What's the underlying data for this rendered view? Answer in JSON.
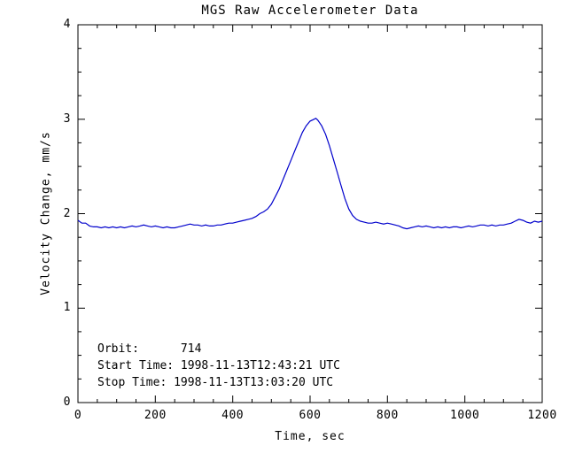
{
  "chart_data": {
    "type": "line",
    "title": "MGS Raw Accelerometer Data",
    "xlabel": "Time, sec",
    "ylabel": "Velocity Change, mm/s",
    "xlim": [
      0,
      1200
    ],
    "ylim": [
      0,
      4
    ],
    "xticks": [
      0,
      200,
      400,
      600,
      800,
      1000,
      1200
    ],
    "yticks": [
      0,
      1,
      2,
      3,
      4
    ],
    "x_minor_step": 50,
    "y_minor_step": 0.25,
    "grid": false,
    "legend": "none",
    "line_color": "#0000cc",
    "axis_color": "#000000",
    "background_color": "#ffffff",
    "annotations": [
      "Orbit:      714",
      "Start Time: 1998-11-13T12:43:21 UTC",
      "Stop Time: 1998-11-13T13:03:20 UTC"
    ],
    "points": [
      [
        0,
        1.93
      ],
      [
        10,
        1.9
      ],
      [
        20,
        1.9
      ],
      [
        30,
        1.87
      ],
      [
        40,
        1.86
      ],
      [
        50,
        1.86
      ],
      [
        60,
        1.85
      ],
      [
        70,
        1.86
      ],
      [
        80,
        1.85
      ],
      [
        90,
        1.86
      ],
      [
        100,
        1.85
      ],
      [
        110,
        1.86
      ],
      [
        120,
        1.85
      ],
      [
        130,
        1.86
      ],
      [
        140,
        1.87
      ],
      [
        150,
        1.86
      ],
      [
        160,
        1.87
      ],
      [
        170,
        1.88
      ],
      [
        180,
        1.87
      ],
      [
        190,
        1.86
      ],
      [
        200,
        1.87
      ],
      [
        210,
        1.86
      ],
      [
        220,
        1.85
      ],
      [
        230,
        1.86
      ],
      [
        240,
        1.85
      ],
      [
        250,
        1.85
      ],
      [
        260,
        1.86
      ],
      [
        270,
        1.87
      ],
      [
        280,
        1.88
      ],
      [
        290,
        1.89
      ],
      [
        300,
        1.88
      ],
      [
        310,
        1.88
      ],
      [
        320,
        1.87
      ],
      [
        330,
        1.88
      ],
      [
        340,
        1.87
      ],
      [
        350,
        1.87
      ],
      [
        360,
        1.88
      ],
      [
        370,
        1.88
      ],
      [
        380,
        1.89
      ],
      [
        390,
        1.9
      ],
      [
        400,
        1.9
      ],
      [
        410,
        1.91
      ],
      [
        420,
        1.92
      ],
      [
        430,
        1.93
      ],
      [
        440,
        1.94
      ],
      [
        450,
        1.95
      ],
      [
        460,
        1.97
      ],
      [
        470,
        2.0
      ],
      [
        480,
        2.02
      ],
      [
        490,
        2.05
      ],
      [
        500,
        2.1
      ],
      [
        510,
        2.18
      ],
      [
        520,
        2.26
      ],
      [
        530,
        2.36
      ],
      [
        540,
        2.46
      ],
      [
        550,
        2.56
      ],
      [
        560,
        2.66
      ],
      [
        570,
        2.76
      ],
      [
        580,
        2.86
      ],
      [
        590,
        2.93
      ],
      [
        600,
        2.98
      ],
      [
        610,
        3.0
      ],
      [
        615,
        3.01
      ],
      [
        620,
        2.99
      ],
      [
        630,
        2.93
      ],
      [
        640,
        2.84
      ],
      [
        650,
        2.72
      ],
      [
        660,
        2.58
      ],
      [
        670,
        2.44
      ],
      [
        680,
        2.3
      ],
      [
        690,
        2.16
      ],
      [
        700,
        2.05
      ],
      [
        710,
        1.98
      ],
      [
        720,
        1.94
      ],
      [
        730,
        1.92
      ],
      [
        740,
        1.91
      ],
      [
        750,
        1.9
      ],
      [
        760,
        1.9
      ],
      [
        770,
        1.91
      ],
      [
        780,
        1.9
      ],
      [
        790,
        1.89
      ],
      [
        800,
        1.9
      ],
      [
        810,
        1.89
      ],
      [
        820,
        1.88
      ],
      [
        830,
        1.87
      ],
      [
        840,
        1.85
      ],
      [
        850,
        1.84
      ],
      [
        860,
        1.85
      ],
      [
        870,
        1.86
      ],
      [
        880,
        1.87
      ],
      [
        890,
        1.86
      ],
      [
        900,
        1.87
      ],
      [
        910,
        1.86
      ],
      [
        920,
        1.85
      ],
      [
        930,
        1.86
      ],
      [
        940,
        1.85
      ],
      [
        950,
        1.86
      ],
      [
        960,
        1.85
      ],
      [
        970,
        1.86
      ],
      [
        980,
        1.86
      ],
      [
        990,
        1.85
      ],
      [
        1000,
        1.86
      ],
      [
        1010,
        1.87
      ],
      [
        1020,
        1.86
      ],
      [
        1030,
        1.87
      ],
      [
        1040,
        1.88
      ],
      [
        1050,
        1.88
      ],
      [
        1060,
        1.87
      ],
      [
        1070,
        1.88
      ],
      [
        1080,
        1.87
      ],
      [
        1090,
        1.88
      ],
      [
        1100,
        1.88
      ],
      [
        1110,
        1.89
      ],
      [
        1120,
        1.9
      ],
      [
        1130,
        1.92
      ],
      [
        1140,
        1.94
      ],
      [
        1150,
        1.93
      ],
      [
        1160,
        1.91
      ],
      [
        1170,
        1.9
      ],
      [
        1180,
        1.92
      ],
      [
        1190,
        1.91
      ],
      [
        1200,
        1.92
      ]
    ]
  }
}
